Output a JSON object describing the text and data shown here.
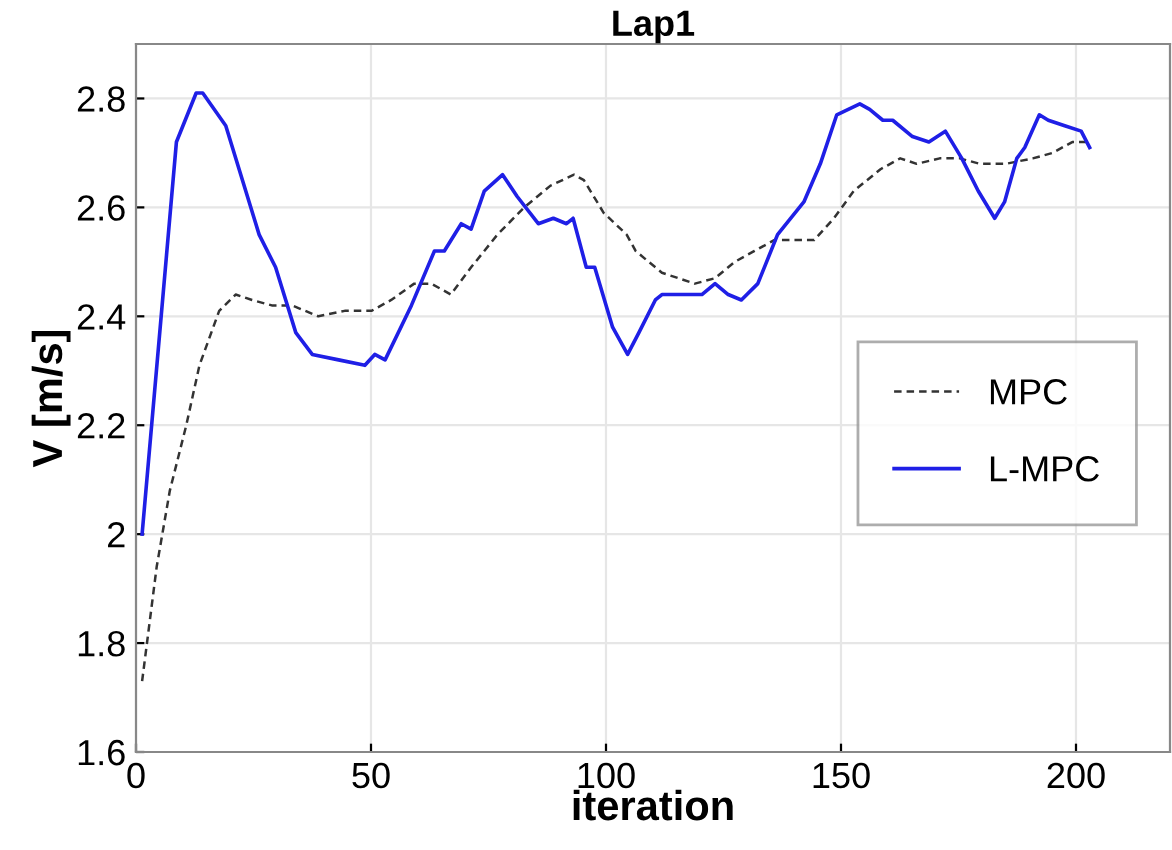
{
  "chart_data": {
    "type": "line",
    "title": "Lap1",
    "xlabel": "iteration",
    "ylabel": "V [m/s]",
    "xlim": [
      0,
      220
    ],
    "ylim": [
      1.6,
      2.9
    ],
    "xticks": [
      0,
      50,
      100,
      150,
      200
    ],
    "yticks": [
      1.6,
      1.8,
      2,
      2.2,
      2.4,
      2.6,
      2.8
    ],
    "grid": true,
    "legend": "right",
    "marker": "none",
    "series": [
      {
        "name": "MPC",
        "color": "#333333",
        "line_style": "dashed",
        "x": [
          1.3,
          4.4,
          7.2,
          10.7,
          13.5,
          17.7,
          21.2,
          24.7,
          28.9,
          33.2,
          38.8,
          44.4,
          50.1,
          54.3,
          59.2,
          62.8,
          67,
          71.3,
          76.9,
          82.6,
          88.2,
          93.2,
          95.3,
          99.5,
          104.4,
          106.3,
          111.9,
          118.9,
          123.2,
          127.4,
          131.6,
          135.8,
          140.1,
          144.3,
          148.5,
          152.7,
          158.4,
          162.6,
          166.1,
          171,
          175.3,
          179.5,
          185.1,
          190.8,
          195,
          199.2,
          202.7
        ],
        "values": [
          1.73,
          1.94,
          2.08,
          2.2,
          2.31,
          2.41,
          2.44,
          2.43,
          2.42,
          2.42,
          2.4,
          2.41,
          2.41,
          2.43,
          2.46,
          2.46,
          2.44,
          2.49,
          2.55,
          2.6,
          2.64,
          2.66,
          2.65,
          2.59,
          2.55,
          2.52,
          2.48,
          2.46,
          2.47,
          2.5,
          2.52,
          2.54,
          2.54,
          2.54,
          2.58,
          2.63,
          2.67,
          2.69,
          2.68,
          2.69,
          2.69,
          2.68,
          2.68,
          2.69,
          2.7,
          2.72,
          2.72
        ]
      },
      {
        "name": "L-MPC",
        "color": "#1f1fe6",
        "line_style": "solid",
        "x": [
          1.3,
          8.6,
          12.8,
          14.2,
          19.1,
          26.2,
          29.7,
          34,
          37.5,
          43.1,
          48.7,
          50.8,
          53,
          58.6,
          63.5,
          65.6,
          69.2,
          71.3,
          74.1,
          78,
          81.1,
          85.6,
          88.8,
          91.6,
          93,
          95.8,
          97.6,
          101.4,
          104.6,
          107,
          110.5,
          111.9,
          116.2,
          120.4,
          123.2,
          126,
          128.8,
          132.3,
          136.5,
          142.1,
          145.6,
          149.1,
          154,
          156.1,
          158.9,
          161,
          165.2,
          168.7,
          172.2,
          175.7,
          179.2,
          182.7,
          184.8,
          187.4,
          189.1,
          192.2,
          194.1,
          197.6,
          201.1,
          202.9
        ],
        "values": [
          2.0,
          2.72,
          2.81,
          2.81,
          2.75,
          2.55,
          2.49,
          2.37,
          2.33,
          2.32,
          2.31,
          2.33,
          2.32,
          2.42,
          2.52,
          2.52,
          2.57,
          2.56,
          2.63,
          2.66,
          2.62,
          2.57,
          2.58,
          2.57,
          2.58,
          2.49,
          2.49,
          2.38,
          2.33,
          2.37,
          2.43,
          2.44,
          2.44,
          2.44,
          2.46,
          2.44,
          2.43,
          2.46,
          2.55,
          2.61,
          2.68,
          2.77,
          2.79,
          2.78,
          2.76,
          2.76,
          2.73,
          2.72,
          2.74,
          2.69,
          2.63,
          2.58,
          2.61,
          2.69,
          2.71,
          2.77,
          2.76,
          2.75,
          2.74,
          2.71
        ]
      }
    ]
  }
}
